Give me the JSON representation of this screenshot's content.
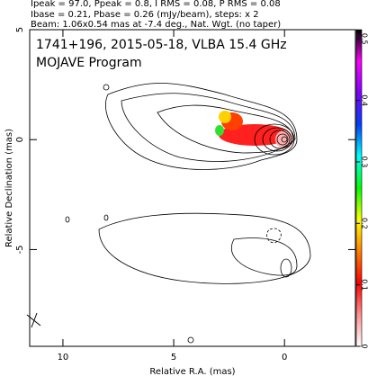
{
  "chart_data": {
    "type": "image",
    "header": [
      "Ipeak = 97.0, Ppeak = 0.8, I RMS = 0.08, P RMS = 0.08",
      "Ibase = 0.21, Pbase = 0.26 (mJy/beam), steps: x 2",
      "Beam: 1.06x0.54 mas at -7.4 deg., Nat. Wgt. (no taper)"
    ],
    "title": "1741+196, 2015-05-18, VLBA 15.4 GHz",
    "subtitle": "MOJAVE Program",
    "x_label": "Relative R.A. (mas)",
    "y_label": "Relative Declination (mas)",
    "xlim": [
      11.5,
      -3.2
    ],
    "xticks": [
      10,
      5,
      0
    ],
    "ylim": [
      -9.4,
      5
    ],
    "yticks": [
      5,
      0,
      -5
    ],
    "colorbar": {
      "lim": [
        0,
        0.515
      ],
      "ticks": [
        0,
        0.1,
        0.2,
        0.3,
        0.4,
        0.5
      ],
      "colors": [
        "#ffffff",
        "#ff9090",
        "#ff0000",
        "#ff8000",
        "#ffff00",
        "#00ff00",
        "#00ffff",
        "#0040ff",
        "#8000ff",
        "#ff00ff",
        "#000000"
      ]
    }
  }
}
